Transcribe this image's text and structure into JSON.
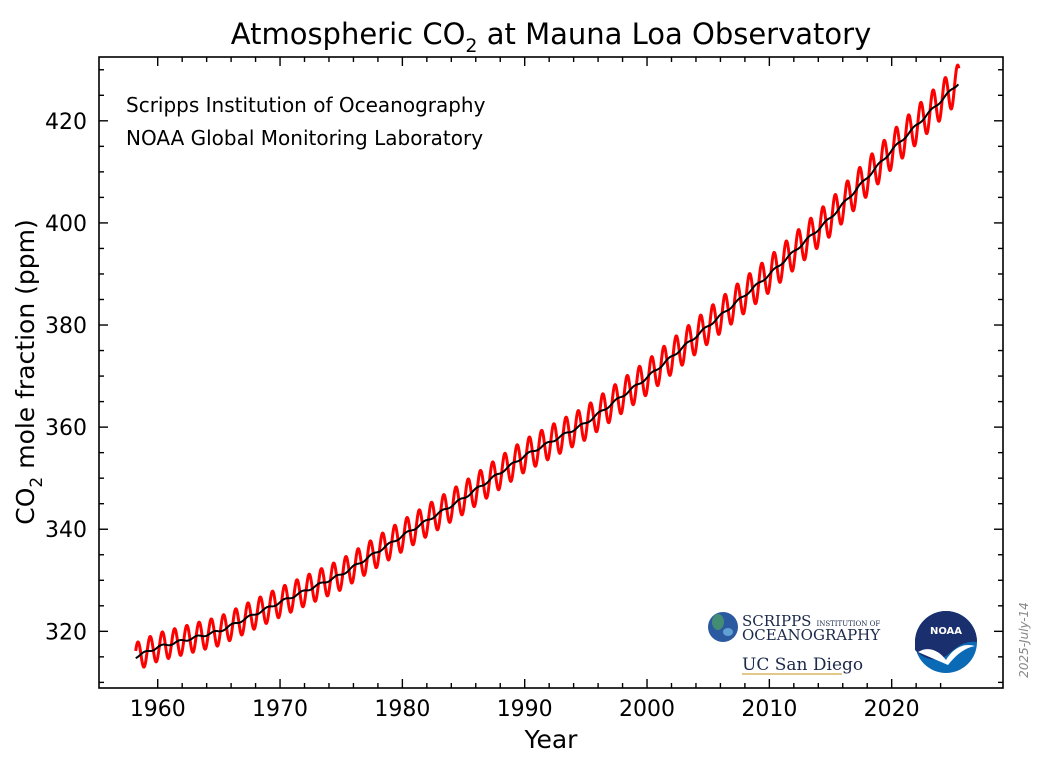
{
  "chart_data": {
    "type": "line",
    "title_main": "Atmospheric CO",
    "title_sub": "2",
    "title_rest": " at Mauna Loa Observatory",
    "xlabel": "Year",
    "ylabel_main": "CO",
    "ylabel_sub": "2",
    "ylabel_rest": " mole fraction (ppm)",
    "xlim": [
      1955.2,
      2029.1
    ],
    "ylim": [
      308.9,
      432.5
    ],
    "xticks": [
      1960,
      1970,
      1980,
      1990,
      2000,
      2010,
      2020
    ],
    "yticks": [
      320,
      340,
      360,
      380,
      400,
      420
    ],
    "grid": false,
    "series": [
      {
        "role": "monthly",
        "color": "#ff0000",
        "x": [
          1958.2,
          2025.5
        ],
        "y": [
          315.7,
          430.5
        ],
        "seasonal_amplitude": 3.2
      },
      {
        "role": "trend",
        "color": "#000000",
        "x": [
          1958.2,
          1960,
          1965,
          1970,
          1975,
          1980,
          1985,
          1990,
          1995,
          2000,
          2005,
          2010,
          2015,
          2020,
          2025.5
        ],
        "y": [
          315,
          316.9,
          320,
          325.7,
          331.1,
          338.7,
          346.1,
          354.4,
          360.8,
          369.7,
          379.8,
          389.9,
          401.0,
          414.2,
          427.5
        ]
      }
    ]
  },
  "annotations": {
    "line1": "Scripps Institution of Oceanography",
    "line2": "NOAA Global Monitoring Laboratory",
    "date": "2025-July-14"
  },
  "logos": {
    "scripps_line1": "SCRIPPS",
    "scripps_small": "INSTITUTION OF",
    "scripps_line2": "OCEANOGRAPHY",
    "ucsd": "UC San Diego",
    "noaa": "NOAA"
  },
  "colors": {
    "monthly": "#ff0000",
    "trend": "#000000",
    "noaa_blue": "#0a6ab6",
    "noaa_navy": "#1a2f6e"
  }
}
